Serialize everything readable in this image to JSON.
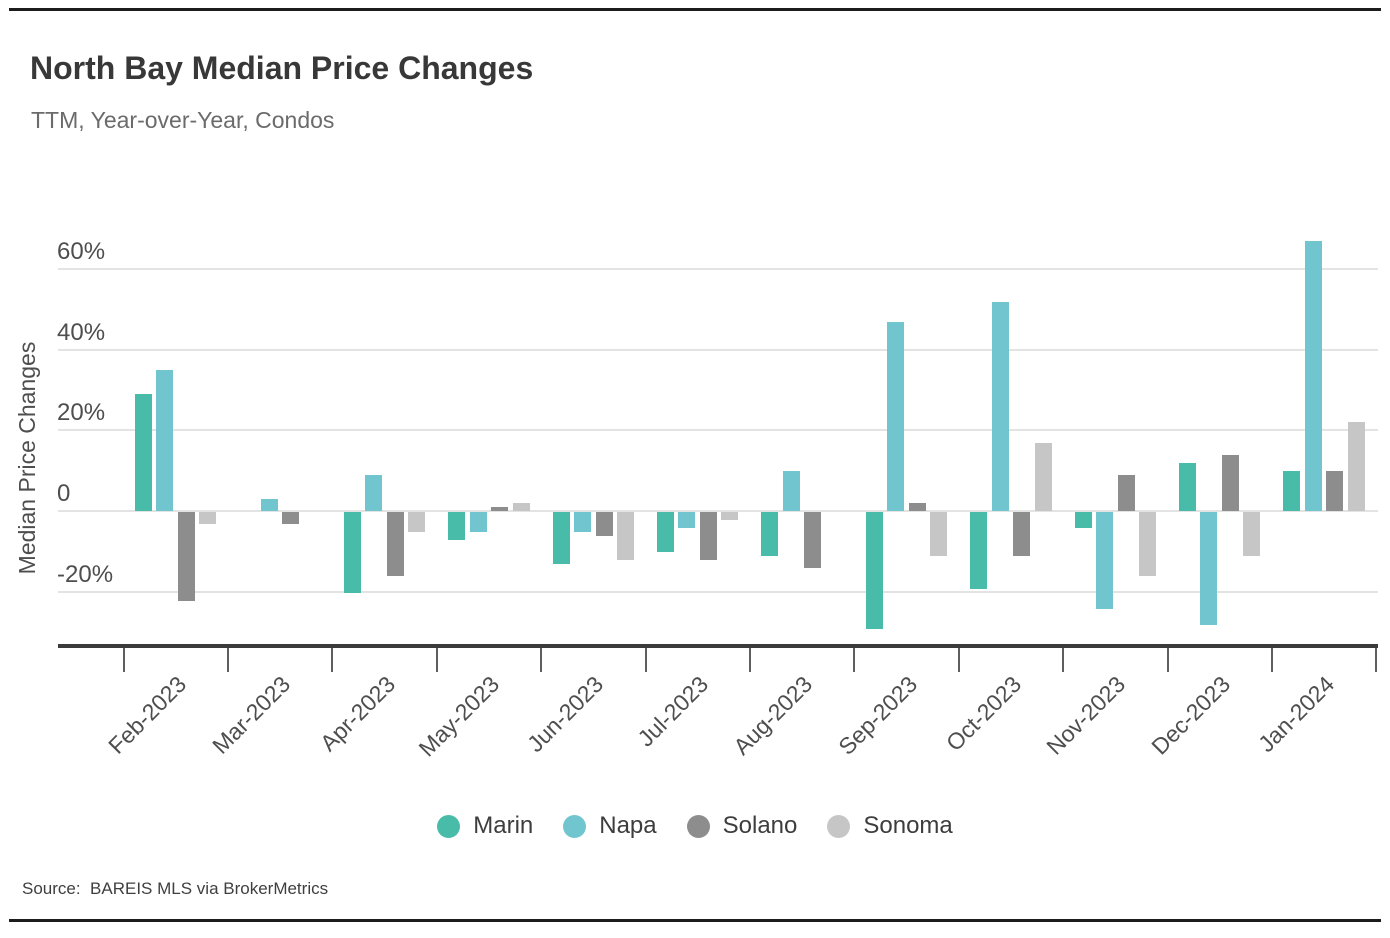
{
  "header": {
    "title": "North Bay Median Price Changes",
    "subtitle": "TTM, Year-over-Year, Condos"
  },
  "footer": {
    "source": "Source:  BAREIS MLS via BrokerMetrics"
  },
  "chart_data": {
    "type": "bar",
    "title": "North Bay Median Price Changes",
    "subtitle": "TTM, Year-over-Year, Condos",
    "ylabel": "Median Price Changes",
    "xlabel": "",
    "unit": "percent",
    "categories": [
      "Feb-2023",
      "Mar-2023",
      "Apr-2023",
      "May-2023",
      "Jun-2023",
      "Jul-2023",
      "Aug-2023",
      "Sep-2023",
      "Oct-2023",
      "Nov-2023",
      "Dec-2023",
      "Jan-2024"
    ],
    "series": [
      {
        "name": "Marin",
        "color": "#49bca9",
        "values": [
          29,
          0,
          -20,
          -7,
          -13,
          -10,
          -11,
          -29,
          -19,
          -4,
          12,
          10
        ]
      },
      {
        "name": "Napa",
        "color": "#71c5cf",
        "values": [
          35,
          3,
          9,
          -5,
          -5,
          -4,
          10,
          47,
          52,
          -24,
          -28,
          67
        ]
      },
      {
        "name": "Solano",
        "color": "#8d8d8d",
        "values": [
          -22,
          -3,
          -16,
          1,
          -6,
          -12,
          -14,
          2,
          -11,
          9,
          14,
          10
        ]
      },
      {
        "name": "Sonoma",
        "color": "#c6c6c6",
        "values": [
          -3,
          0,
          -5,
          2,
          -12,
          -2,
          0,
          -11,
          17,
          -16,
          -11,
          22
        ]
      }
    ],
    "y_ticks": [
      {
        "value": 60,
        "label": "60%"
      },
      {
        "value": 40,
        "label": "40%"
      },
      {
        "value": 20,
        "label": "20%"
      },
      {
        "value": 0,
        "label": "0"
      },
      {
        "value": -20,
        "label": "-20%"
      }
    ],
    "ylim": [
      -33,
      70
    ],
    "grid": true,
    "legend_position": "bottom",
    "note": "bars with value 0 are not drawn",
    "source": "Source:  BAREIS MLS via BrokerMetrics"
  }
}
